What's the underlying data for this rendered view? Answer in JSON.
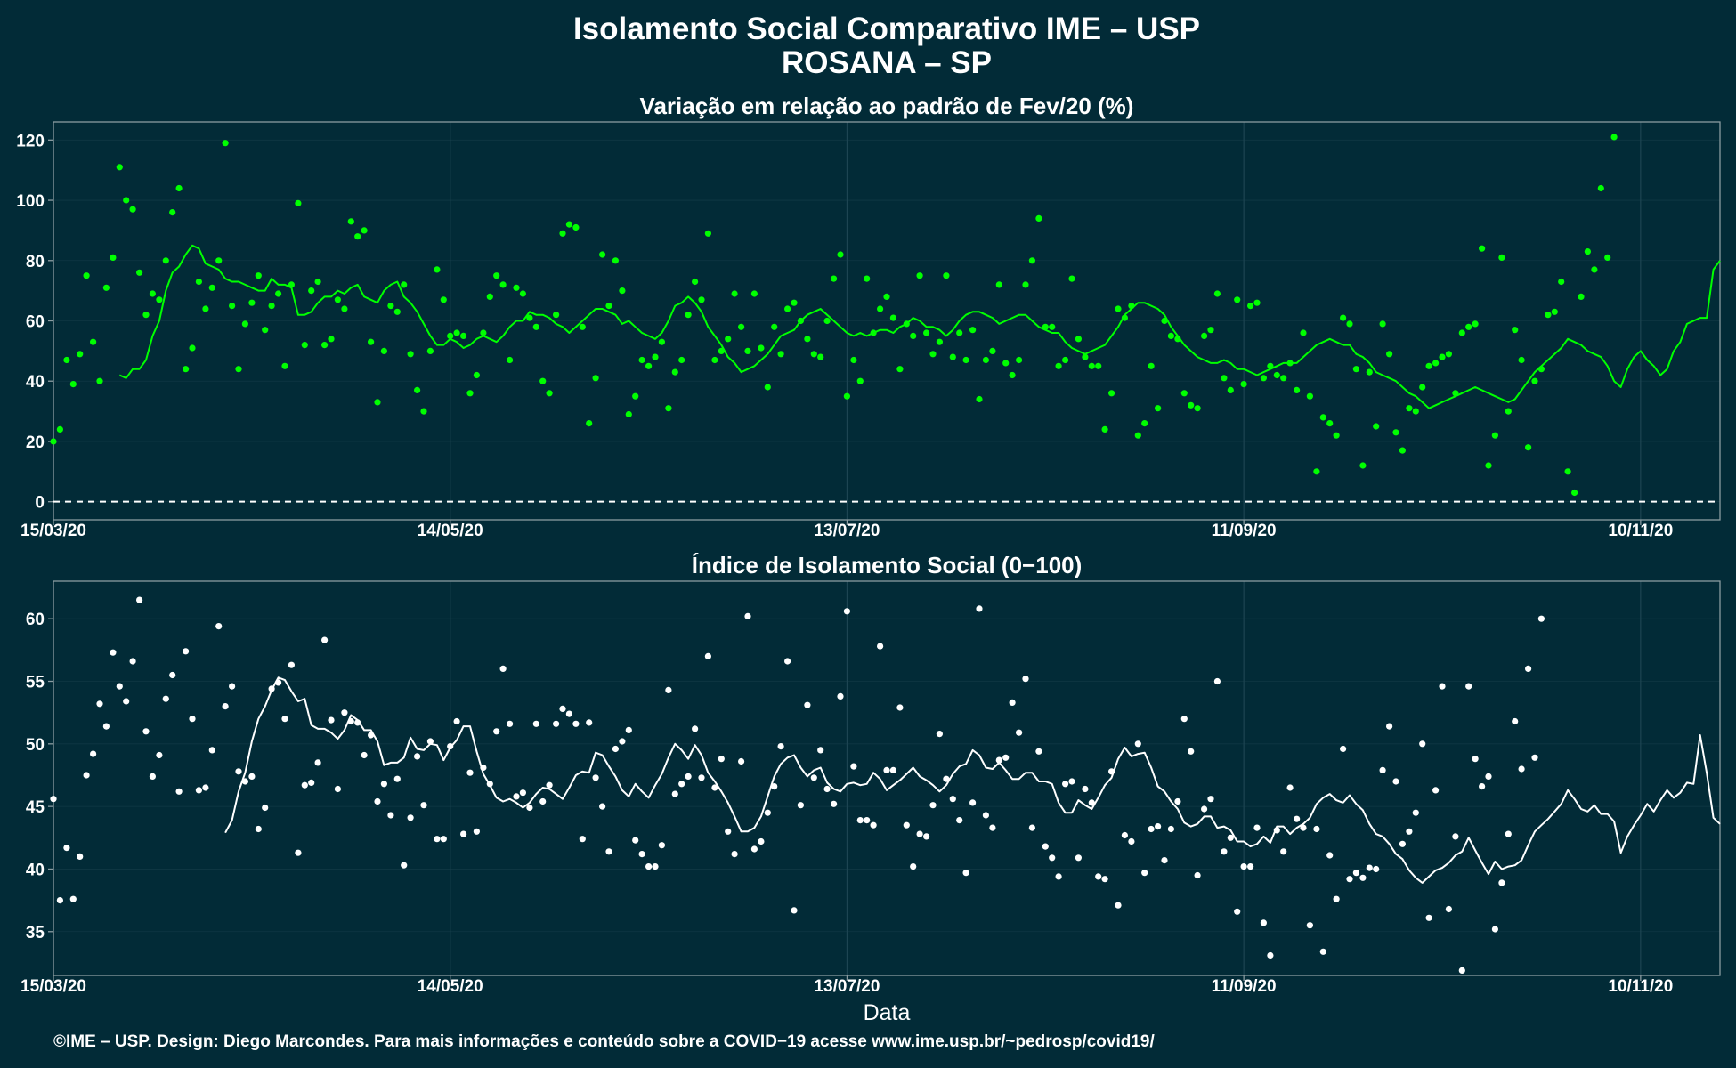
{
  "header": {
    "title": "Isolamento Social Comparativo IME – USP",
    "subtitle": "ROSANA – SP"
  },
  "footer": {
    "caption": "©IME – USP. Design: Diego Marcondes. Para mais informações e conteúdo sobre a COVID−19 acesse www.ime.usp.br/~pedrosp/covid19/"
  },
  "colors": {
    "background": "#022b37",
    "panel_border": "#8a9ba0",
    "gridline": "#1d4552",
    "variation_series": "#00ff00",
    "index_series": "#ffffff"
  },
  "chart_data": [
    {
      "type": "scatter",
      "title": "Variação em relação ao padrão de Fev/20 (%)",
      "xlabel": "",
      "ylabel": "",
      "x_start": "15/03/20",
      "x_end": "22/11/20",
      "x_ticks": [
        "15/03/20",
        "14/05/20",
        "13/07/20",
        "11/09/20",
        "10/11/20"
      ],
      "ylim": [
        -6,
        126
      ],
      "y_ticks": [
        0,
        20,
        40,
        60,
        80,
        100,
        120
      ],
      "reference_line": 0,
      "grid": true,
      "series": [
        {
          "style": "points",
          "color": "#00ff00",
          "values": [
            20,
            24,
            47,
            39,
            49,
            75,
            53,
            40,
            71,
            81,
            111,
            100,
            97,
            76,
            62,
            69,
            67,
            80,
            96,
            104,
            44,
            51,
            73,
            64,
            71,
            80,
            119,
            65,
            44,
            59,
            66,
            75,
            57,
            65,
            69,
            45,
            72,
            99,
            52,
            70,
            73,
            52,
            54,
            67,
            64,
            93,
            88,
            90,
            53,
            33,
            50,
            65,
            63,
            72,
            49,
            37,
            30,
            50,
            77,
            67,
            55,
            56,
            55,
            36,
            42,
            56,
            68,
            75,
            72,
            47,
            71,
            69,
            61,
            58,
            40,
            36,
            62,
            89,
            92,
            91,
            58,
            26,
            41,
            82,
            65,
            80,
            70,
            29,
            35,
            47,
            45,
            48,
            53,
            31,
            43,
            47,
            62,
            73,
            67,
            89,
            47,
            50,
            54,
            69,
            58,
            50,
            69,
            51,
            38,
            58,
            49,
            64,
            66,
            60,
            54,
            49,
            48,
            60,
            74,
            82,
            35,
            47,
            40,
            74,
            56,
            64,
            68,
            61,
            44,
            59,
            55,
            75,
            56,
            49,
            53,
            75,
            48,
            56,
            47,
            57,
            34,
            47,
            50,
            72,
            46,
            42,
            47,
            72,
            80,
            94,
            58,
            58,
            45,
            47,
            74,
            54,
            48,
            45,
            45,
            24,
            36,
            64,
            61,
            65,
            22,
            26,
            45,
            31,
            60,
            55,
            54,
            36,
            32,
            31,
            55,
            57,
            69,
            41,
            37,
            67,
            39,
            65,
            66,
            41,
            45,
            42,
            41,
            46,
            37,
            56,
            35,
            10,
            28,
            26,
            22,
            61,
            59,
            44,
            12,
            43,
            25,
            59,
            49,
            23,
            17,
            31,
            30,
            38,
            45,
            46,
            48,
            49,
            36,
            56,
            58,
            59,
            84,
            12,
            22,
            81,
            30,
            57,
            47,
            18,
            40,
            44,
            62,
            63,
            73,
            10,
            3,
            68,
            83,
            77,
            104,
            81,
            121
          ]
        },
        {
          "style": "line",
          "color": "#00ff00",
          "values": [
            42,
            41,
            44,
            44,
            47,
            55,
            60,
            70,
            76,
            78,
            82,
            85,
            84,
            79,
            78,
            77,
            74,
            73,
            73,
            72,
            71,
            70,
            70,
            74,
            72,
            72,
            71,
            62,
            62,
            63,
            66,
            68,
            68,
            70,
            69,
            71,
            72,
            68,
            67,
            66,
            70,
            72,
            73,
            68,
            66,
            63,
            59,
            55,
            52,
            52,
            54,
            53,
            51,
            52,
            54,
            55,
            54,
            53,
            55,
            58,
            60,
            60,
            63,
            62,
            62,
            61,
            59,
            58,
            56,
            58,
            60,
            62,
            64,
            64,
            63,
            62,
            59,
            60,
            58,
            56,
            55,
            54,
            56,
            60,
            65,
            66,
            68,
            66,
            63,
            58,
            55,
            52,
            48,
            46,
            43,
            44,
            45,
            47,
            49,
            52,
            55,
            56,
            57,
            60,
            62,
            63,
            64,
            62,
            60,
            58,
            56,
            55,
            56,
            55,
            56,
            57,
            57,
            56,
            58,
            59,
            61,
            60,
            58,
            58,
            57,
            55,
            57,
            60,
            62,
            63,
            63,
            62,
            61,
            59,
            60,
            61,
            62,
            62,
            60,
            58,
            57,
            56,
            56,
            53,
            51,
            50,
            49,
            50,
            51,
            52,
            55,
            58,
            62,
            64,
            66,
            66,
            65,
            64,
            62,
            58,
            55,
            52,
            50,
            48,
            47,
            46,
            46,
            47,
            46,
            44,
            44,
            43,
            42,
            43,
            44,
            45,
            46,
            46,
            46,
            48,
            50,
            52,
            53,
            54,
            53,
            52,
            52,
            49,
            48,
            46,
            43,
            42,
            41,
            40,
            38,
            36,
            35,
            33,
            31,
            32,
            33,
            34,
            35,
            36,
            37,
            38,
            37,
            36,
            35,
            34,
            33,
            34,
            37,
            40,
            43,
            45,
            47,
            49,
            51,
            54,
            53,
            52,
            50,
            49,
            48,
            45,
            40,
            38,
            44,
            48,
            50,
            47,
            45,
            42,
            44,
            50,
            53,
            59,
            60,
            61,
            61,
            77,
            80
          ]
        }
      ]
    },
    {
      "type": "scatter",
      "title": "Índice de Isolamento Social (0−100)",
      "xlabel": "Data",
      "ylabel": "",
      "x_start": "15/03/20",
      "x_end": "22/11/20",
      "x_ticks": [
        "15/03/20",
        "14/05/20",
        "13/07/20",
        "11/09/20",
        "10/11/20"
      ],
      "ylim": [
        31.5,
        63
      ],
      "y_ticks": [
        35,
        40,
        45,
        50,
        55,
        60
      ],
      "grid": true,
      "series": [
        {
          "style": "points",
          "color": "#ffffff",
          "values": [
            45.6,
            37.5,
            41.7,
            37.6,
            41,
            47.5,
            49.2,
            53.2,
            51.4,
            57.3,
            54.6,
            53.4,
            56.6,
            61.5,
            51,
            47.4,
            49.1,
            53.6,
            55.5,
            46.2,
            57.4,
            52,
            46.3,
            46.5,
            49.5,
            59.4,
            53,
            54.6,
            47.8,
            47,
            47.4,
            43.2,
            44.9,
            54.4,
            54.9,
            52,
            56.3,
            41.3,
            46.7,
            46.9,
            48.5,
            58.3,
            51.9,
            46.4,
            52.5,
            51.8,
            51.7,
            49.1,
            50.7,
            45.4,
            46.8,
            44.3,
            47.2,
            40.3,
            44.1,
            49,
            45.1,
            50.2,
            42.4,
            42.4,
            49.8,
            51.8,
            42.8,
            47.7,
            43,
            48.1,
            46.8,
            51,
            56,
            51.6,
            45.8,
            46.1,
            44.9,
            51.6,
            45.4,
            46.7,
            51.6,
            52.8,
            52.4,
            51.6,
            42.4,
            51.7,
            47.3,
            45,
            41.4,
            49.6,
            50.2,
            51.1,
            42.3,
            41.2,
            40.2,
            40.2,
            41.9,
            54.3,
            46,
            46.8,
            47.4,
            51.2,
            47.3,
            57,
            46.5,
            48.8,
            43,
            41.2,
            48.6,
            60.2,
            41.6,
            42.2,
            44.5,
            46.6,
            49.8,
            56.6,
            36.7,
            45.1,
            53.1,
            47.3,
            49.5,
            46.4,
            45.2,
            53.8,
            60.6,
            48.2,
            43.9,
            43.9,
            43.5,
            57.8,
            47.9,
            47.9,
            52.9,
            43.5,
            40.2,
            42.8,
            42.6,
            45.1,
            50.8,
            47.2,
            45.6,
            43.9,
            39.7,
            45.3,
            60.8,
            44.3,
            43.3,
            48.7,
            48.9,
            53.3,
            50.9,
            55.2,
            43.3,
            49.4,
            41.8,
            40.9,
            39.4,
            46.8,
            47,
            40.9,
            46.4,
            45.3,
            39.4,
            39.2,
            47.8,
            37.1,
            42.7,
            42.2,
            50,
            39.7,
            43.2,
            43.4,
            40.7,
            43.2,
            45.4,
            52,
            49.4,
            39.5,
            44.8,
            45.6,
            55,
            41.4,
            42.5,
            36.6,
            40.2,
            40.2,
            43.3,
            35.7,
            33.1,
            43.1,
            41.4,
            46.5,
            44,
            43.3,
            35.5,
            43.2,
            33.4,
            41.1,
            37.6,
            49.6,
            39.2,
            39.7,
            39.3,
            40.1,
            40,
            47.9,
            51.4,
            47,
            42,
            43,
            44.5,
            50,
            36.1,
            46.3,
            54.6,
            36.8,
            42.6,
            31.9,
            54.6,
            48.8,
            46.6,
            47.4,
            35.2,
            38.9,
            42.8,
            51.8,
            48,
            56,
            48.9,
            60
          ]
        },
        {
          "style": "line",
          "color": "#ffffff",
          "values": [
            42.9,
            43.9,
            46.2,
            47.7,
            50.2,
            52,
            53,
            54.3,
            55.3,
            55.1,
            54.2,
            53.4,
            53.6,
            51.5,
            51.2,
            51.2,
            50.9,
            50.4,
            51.1,
            52.3,
            51.9,
            51.1,
            51.1,
            50.2,
            48.3,
            48.5,
            48.5,
            48.9,
            50.5,
            49.6,
            49.5,
            50,
            49.9,
            48.7,
            49.7,
            50.3,
            51.4,
            51.4,
            49.4,
            47.6,
            46.7,
            45.7,
            45.4,
            45.6,
            45.3,
            44.9,
            45.3,
            46,
            46.5,
            46.4,
            46,
            45.6,
            46.5,
            47.5,
            47.8,
            47.7,
            49.3,
            49.1,
            48.2,
            47.4,
            46.3,
            45.8,
            46.8,
            46.2,
            45.7,
            46.7,
            47.6,
            48.9,
            50,
            49.5,
            48.8,
            49.9,
            49.1,
            47.7,
            47,
            46.2,
            45.3,
            44.2,
            43,
            43,
            43.3,
            44.2,
            45.8,
            47.4,
            48.4,
            48.9,
            49.1,
            48.1,
            47.4,
            47.9,
            48.1,
            46.9,
            46.4,
            46.2,
            46.8,
            46.9,
            46.7,
            46.8,
            47.7,
            47.2,
            46.3,
            46.7,
            47.1,
            47.6,
            48.1,
            47.4,
            47.1,
            46.7,
            46.2,
            46.7,
            47.6,
            48.2,
            48.4,
            49.5,
            49.1,
            48.1,
            48,
            48.5,
            47.9,
            47.2,
            47.2,
            47.7,
            47.7,
            47,
            47,
            46.8,
            45.3,
            44.5,
            44.5,
            45.5,
            45.1,
            44.8,
            45.7,
            46.7,
            47.3,
            48.8,
            49.7,
            49,
            49.2,
            49.3,
            48.1,
            46.6,
            46.2,
            45.4,
            44.8,
            43.7,
            43.4,
            43.6,
            44.2,
            44.2,
            43.3,
            43.4,
            43.1,
            42.2,
            42.2,
            41.8,
            42,
            42.6,
            42.1,
            43.4,
            43.4,
            42.8,
            43.3,
            43.6,
            44.1,
            45.2,
            45.7,
            46,
            45.5,
            45.3,
            45.9,
            45.2,
            44.7,
            43.6,
            42.8,
            42.6,
            42,
            41.2,
            40.8,
            39.9,
            39.3,
            38.9,
            39.4,
            39.9,
            40.1,
            40.5,
            41.1,
            41.4,
            42.5,
            41.5,
            40.5,
            39.6,
            40.6,
            40,
            40.2,
            40.3,
            40.7,
            41.9,
            43,
            43.5,
            44,
            44.6,
            45.2,
            46.3,
            45.6,
            44.8,
            44.6,
            45.1,
            44.4,
            44.4,
            43.8,
            41.3,
            42.6,
            43.5,
            44.3,
            45.2,
            44.6,
            45.5,
            46.3,
            45.7,
            46.1,
            46.9,
            46.8,
            50.7,
            47.7,
            44.1,
            43.6
          ]
        }
      ]
    }
  ]
}
